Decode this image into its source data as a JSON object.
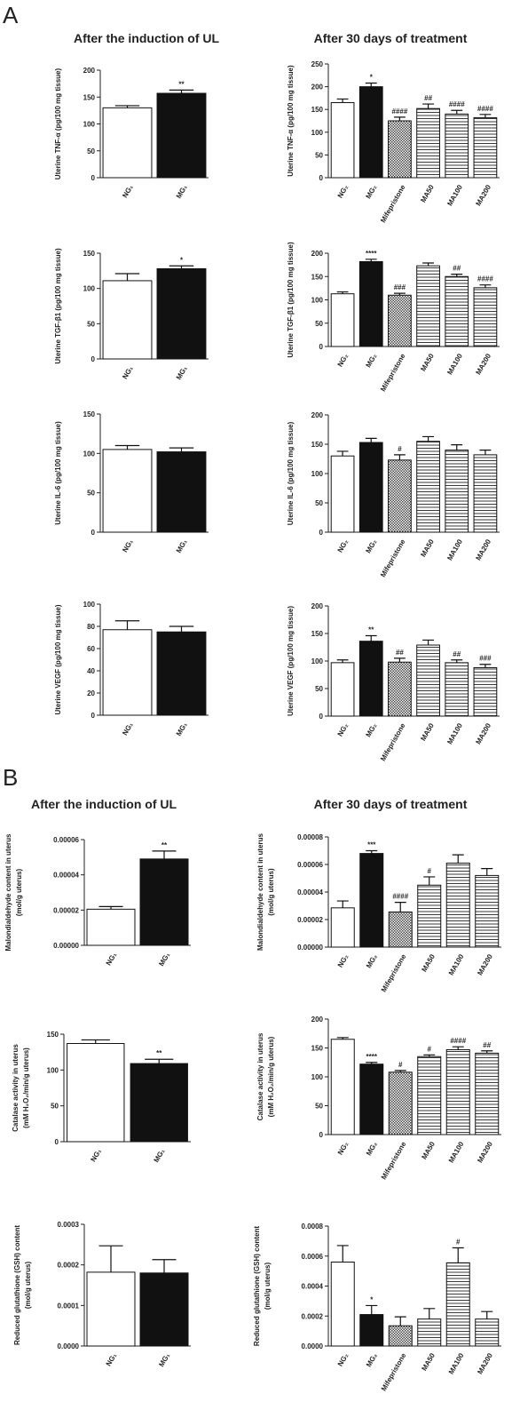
{
  "panels": [
    {
      "label": "A",
      "titles": [
        "After the induction of UL",
        "After 30 days of treatment"
      ]
    },
    {
      "label": "B",
      "titles": [
        "After the induction of UL",
        "After 30 days of treatment"
      ]
    }
  ],
  "chart_data": [
    {
      "type": "bar",
      "ylabel": [
        "Uterine TNF-α (pg/100 mg tissue)"
      ],
      "categories": [
        "NG₁",
        "MG₁"
      ],
      "values": [
        130,
        157
      ],
      "errors": [
        4,
        6
      ],
      "annotations": [
        null,
        "**"
      ],
      "bar_styles": [
        "white",
        "black"
      ],
      "ylim": [
        0,
        200
      ],
      "yticks": [
        0,
        50,
        100,
        150,
        200
      ]
    },
    {
      "type": "bar",
      "ylabel": [
        "Uterine TNF-α (pg/100 mg tissue)"
      ],
      "categories": [
        "NG₂",
        "MG₂",
        "Mifepristone",
        "MA50",
        "MA100",
        "MA200"
      ],
      "values": [
        165,
        200,
        125,
        152,
        140,
        132
      ],
      "errors": [
        8,
        8,
        8,
        10,
        8,
        7
      ],
      "annotations": [
        null,
        "*",
        "####",
        "##",
        "####",
        "####"
      ],
      "bar_styles": [
        "white",
        "black",
        "checker",
        "striped",
        "striped",
        "striped"
      ],
      "ylim": [
        0,
        250
      ],
      "yticks": [
        0,
        50,
        100,
        150,
        200,
        250
      ]
    },
    {
      "type": "bar",
      "ylabel": [
        "Uterine TGF-β1 (pg/100 mg tissue)"
      ],
      "categories": [
        "NG₁",
        "MG₁"
      ],
      "values": [
        111,
        128
      ],
      "errors": [
        10,
        4
      ],
      "annotations": [
        null,
        "*"
      ],
      "bar_styles": [
        "white",
        "black"
      ],
      "ylim": [
        0,
        150
      ],
      "yticks": [
        0,
        50,
        100,
        150
      ]
    },
    {
      "type": "bar",
      "ylabel": [
        "Uterine TGF-β1 (pg/100 mg tissue)"
      ],
      "categories": [
        "NG₂",
        "MG₂",
        "Mifepristone",
        "MA50",
        "MA100",
        "MA200"
      ],
      "values": [
        113,
        182,
        110,
        173,
        150,
        126
      ],
      "errors": [
        4,
        5,
        4,
        6,
        5,
        6
      ],
      "annotations": [
        null,
        "****",
        "###",
        null,
        "##",
        "####"
      ],
      "bar_styles": [
        "white",
        "black",
        "checker",
        "striped",
        "striped",
        "striped"
      ],
      "ylim": [
        0,
        200
      ],
      "yticks": [
        0,
        50,
        100,
        150,
        200
      ]
    },
    {
      "type": "bar",
      "ylabel": [
        "Uterine IL-6 (pg/100 mg tissue)"
      ],
      "categories": [
        "NG₁",
        "MG₁"
      ],
      "values": [
        105,
        102
      ],
      "errors": [
        5,
        5
      ],
      "annotations": [
        null,
        null
      ],
      "bar_styles": [
        "white",
        "black"
      ],
      "ylim": [
        0,
        150
      ],
      "yticks": [
        0,
        50,
        100,
        150
      ]
    },
    {
      "type": "bar",
      "ylabel": [
        "Uterine IL-6 (pg/100 mg tissue)"
      ],
      "categories": [
        "NG₂",
        "MG₂",
        "Mifepristone",
        "MA50",
        "MA100",
        "MA200"
      ],
      "values": [
        130,
        153,
        123,
        155,
        140,
        132
      ],
      "errors": [
        8,
        7,
        9,
        8,
        9,
        8
      ],
      "annotations": [
        null,
        null,
        "#",
        null,
        null,
        null
      ],
      "bar_styles": [
        "white",
        "black",
        "checker",
        "striped",
        "striped",
        "striped"
      ],
      "ylim": [
        0,
        200
      ],
      "yticks": [
        0,
        50,
        100,
        150,
        200
      ]
    },
    {
      "type": "bar",
      "ylabel": [
        "Uterine VEGF (pg/100 mg tissue)"
      ],
      "categories": [
        "NG₁",
        "MG₁"
      ],
      "values": [
        77,
        75
      ],
      "errors": [
        8,
        5
      ],
      "annotations": [
        null,
        null
      ],
      "bar_styles": [
        "white",
        "black"
      ],
      "ylim": [
        0,
        100
      ],
      "yticks": [
        0,
        20,
        40,
        60,
        80,
        100
      ]
    },
    {
      "type": "bar",
      "ylabel": [
        "Uterine VEGF (pg/100 mg tissue)"
      ],
      "categories": [
        "NG₂",
        "MG₂",
        "Mifepristone",
        "MA50",
        "MA100",
        "MA200"
      ],
      "values": [
        97,
        136,
        98,
        129,
        97,
        88
      ],
      "errors": [
        5,
        10,
        7,
        9,
        5,
        6
      ],
      "annotations": [
        null,
        "**",
        "##",
        null,
        "##",
        "###"
      ],
      "bar_styles": [
        "white",
        "black",
        "checker",
        "striped",
        "striped",
        "striped"
      ],
      "ylim": [
        0,
        200
      ],
      "yticks": [
        0,
        50,
        100,
        150,
        200
      ]
    },
    {
      "type": "bar",
      "ylabel": [
        "Malondialdehyde content in uterus",
        "(mol/g uterus)"
      ],
      "categories": [
        "NG₁",
        "MG₁"
      ],
      "values": [
        2.05e-05,
        4.9e-05
      ],
      "errors": [
        1.5e-06,
        4.5e-06
      ],
      "annotations": [
        null,
        "**"
      ],
      "bar_styles": [
        "white",
        "black"
      ],
      "ylim": [
        0,
        6e-05
      ],
      "yticks": [
        {
          "value": 0,
          "label": "0.00000"
        },
        {
          "value": 2e-05,
          "label": "0.00002"
        },
        {
          "value": 4e-05,
          "label": "0.00004"
        },
        {
          "value": 6e-05,
          "label": "0.00006"
        }
      ]
    },
    {
      "type": "bar",
      "ylabel": [
        "Malondialdehyde content in uterus",
        "(mol/g uterus)"
      ],
      "categories": [
        "NG₂",
        "MG₂",
        "Mifepristone",
        "MA50",
        "MA100",
        "MA200"
      ],
      "values": [
        2.85e-05,
        6.8e-05,
        2.55e-05,
        4.5e-05,
        6.1e-05,
        5.2e-05
      ],
      "errors": [
        5e-06,
        2e-06,
        7e-06,
        6e-06,
        6e-06,
        5e-06
      ],
      "annotations": [
        null,
        "***",
        "####",
        "#",
        null,
        null
      ],
      "bar_styles": [
        "white",
        "black",
        "checker",
        "striped",
        "striped",
        "striped"
      ],
      "ylim": [
        0,
        8e-05
      ],
      "yticks": [
        {
          "value": 0,
          "label": "0.00000"
        },
        {
          "value": 2e-05,
          "label": "0.00002"
        },
        {
          "value": 4e-05,
          "label": "0.00004"
        },
        {
          "value": 6e-05,
          "label": "0.00006"
        },
        {
          "value": 8e-05,
          "label": "0.00008"
        }
      ]
    },
    {
      "type": "bar",
      "ylabel": [
        "Catalase activity in uterus",
        "(mM H₂O₂/min/g uterus)"
      ],
      "categories": [
        "NG₁",
        "MG₁"
      ],
      "values": [
        137,
        109
      ],
      "errors": [
        5,
        6
      ],
      "annotations": [
        null,
        "**"
      ],
      "bar_styles": [
        "white",
        "black"
      ],
      "ylim": [
        0,
        150
      ],
      "yticks": [
        0,
        50,
        100,
        150
      ]
    },
    {
      "type": "bar",
      "ylabel": [
        "Catalase activity in uterus",
        "(mM H₂O₂/min/g uterus)"
      ],
      "categories": [
        "NG₂",
        "MG₂",
        "Mifepristone",
        "MA50",
        "MA100",
        "MA200"
      ],
      "values": [
        165,
        122,
        108,
        135,
        147,
        141
      ],
      "errors": [
        3,
        3,
        3,
        3,
        5,
        4
      ],
      "annotations": [
        null,
        "****",
        "#",
        "#",
        "####",
        "##"
      ],
      "bar_styles": [
        "white",
        "black",
        "checker",
        "striped",
        "striped",
        "striped"
      ],
      "ylim": [
        0,
        200
      ],
      "yticks": [
        0,
        50,
        100,
        150,
        200
      ]
    },
    {
      "type": "bar",
      "ylabel": [
        "Reduced glutathione (GSH) content",
        "(mol/g uterus)"
      ],
      "categories": [
        "NG₁",
        "MG₁"
      ],
      "values": [
        0.000182,
        0.00018
      ],
      "errors": [
        6.5e-05,
        3.3e-05
      ],
      "annotations": [
        null,
        null
      ],
      "bar_styles": [
        "white",
        "black"
      ],
      "ylim": [
        0,
        0.0003
      ],
      "yticks": [
        {
          "value": 0,
          "label": "0.0000"
        },
        {
          "value": 0.0001,
          "label": "0.0001"
        },
        {
          "value": 0.0002,
          "label": "0.0002"
        },
        {
          "value": 0.0003,
          "label": "0.0003"
        }
      ]
    },
    {
      "type": "bar",
      "ylabel": [
        "Reduced glutathione (GSH) content",
        "(mol/g uterus)"
      ],
      "categories": [
        "NG₂",
        "MG₂",
        "Mifepristone",
        "MA50",
        "MA100",
        "MA200"
      ],
      "values": [
        0.00056,
        0.00021,
        0.000135,
        0.00018,
        0.000555,
        0.00018
      ],
      "errors": [
        0.00011,
        6e-05,
        6e-05,
        7e-05,
        0.0001,
        5e-05
      ],
      "annotations": [
        null,
        "*",
        null,
        null,
        "#",
        null
      ],
      "bar_styles": [
        "white",
        "black",
        "checker",
        "striped",
        "striped",
        "striped"
      ],
      "ylim": [
        0,
        0.0008
      ],
      "yticks": [
        {
          "value": 0,
          "label": "0.0000"
        },
        {
          "value": 0.0002,
          "label": "0.0002"
        },
        {
          "value": 0.0004,
          "label": "0.0004"
        },
        {
          "value": 0.0006,
          "label": "0.0006"
        },
        {
          "value": 0.0008,
          "label": "0.0008"
        }
      ]
    }
  ]
}
